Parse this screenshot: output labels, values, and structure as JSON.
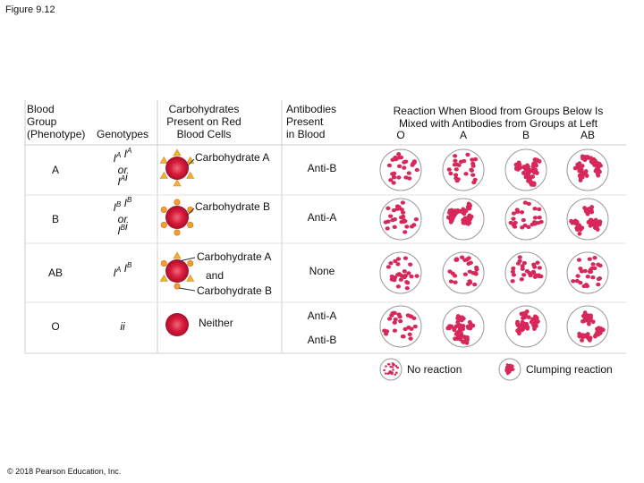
{
  "figure_label": "Figure 9.12",
  "header": {
    "phenotype": [
      "Blood",
      "Group",
      "(Phenotype)"
    ],
    "genotypes": "Genotypes",
    "carbohydrates": [
      "Carbohydrates",
      "Present on Red",
      "Blood Cells"
    ],
    "antibodies": [
      "Antibodies",
      "Present",
      "in Blood"
    ],
    "reaction": [
      "Reaction When Blood from Groups Below Is",
      "Mixed with Antibodies from Groups at Left"
    ],
    "reaction_columns": [
      "O",
      "A",
      "B",
      "AB"
    ]
  },
  "rows": [
    {
      "phenotype": "A",
      "genotype": [
        [
          {
            "t": "I",
            "sup": "A"
          },
          {
            "t": " I",
            "sup": "A"
          }
        ],
        [
          {
            "t": "or"
          }
        ],
        [
          {
            "t": "I",
            "sup": "A"
          },
          {
            "t": "i"
          }
        ]
      ],
      "carbohydrate": [
        "Carbohydrate A"
      ],
      "antibodies": [
        "Anti-B"
      ],
      "clumping": [
        false,
        false,
        true,
        true
      ]
    },
    {
      "phenotype": "B",
      "genotype": [
        [
          {
            "t": "I",
            "sup": "B"
          },
          {
            "t": " I",
            "sup": "B"
          }
        ],
        [
          {
            "t": "or"
          }
        ],
        [
          {
            "t": "I",
            "sup": "B"
          },
          {
            "t": "i"
          }
        ]
      ],
      "carbohydrate": [
        "Carbohydrate B"
      ],
      "antibodies": [
        "Anti-A"
      ],
      "clumping": [
        false,
        true,
        false,
        true
      ]
    },
    {
      "phenotype": "AB",
      "genotype": [
        [
          {
            "t": "I",
            "sup": "A"
          },
          {
            "t": " I",
            "sup": "B"
          }
        ]
      ],
      "carbohydrate": [
        "Carbohydrate A",
        "and",
        "Carbohydrate B"
      ],
      "antibodies": [
        "None"
      ],
      "clumping": [
        false,
        false,
        false,
        false
      ]
    },
    {
      "phenotype": "O",
      "genotype": [
        [
          {
            "t": "ii"
          }
        ]
      ],
      "carbohydrate": [
        "Neither"
      ],
      "antibodies": [
        "Anti-A",
        "Anti-B"
      ],
      "clumping": [
        false,
        true,
        true,
        true
      ]
    }
  ],
  "legend": {
    "no_reaction": "No reaction",
    "clumping": "Clumping reaction"
  },
  "copyright": "© 2018 Pearson Education, Inc."
}
